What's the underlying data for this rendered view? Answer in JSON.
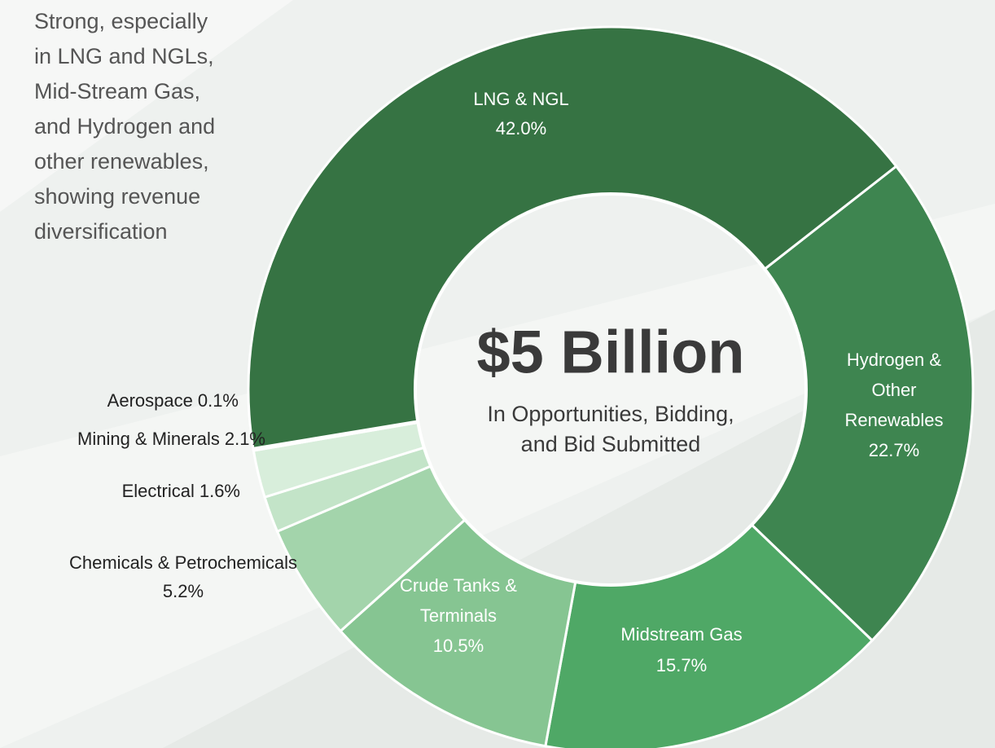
{
  "chart_data": {
    "type": "donut",
    "annotation": [
      "Strong, especially",
      "in LNG and NGLs,",
      "Mid-Stream Gas,",
      "and Hydrogen and",
      "other renewables,",
      "showing revenue",
      "diversification"
    ],
    "center_title": "$5 Billion",
    "center_subtitle": [
      "In Opportunities, Bidding,",
      "and Bid Submitted"
    ],
    "categories": [
      "Hydrogen & Other Renewables",
      "Midstream Gas",
      "Crude Tanks & Terminals",
      "Chemicals & Petrochemicals",
      "Electrical",
      "Mining & Minerals",
      "Aerospace",
      "LNG & NGL"
    ],
    "values": [
      22.7,
      15.7,
      10.5,
      5.2,
      1.6,
      2.1,
      0.1,
      42.0
    ],
    "value_labels": [
      "22.7%",
      "15.7%",
      "10.5%",
      "5.2%",
      "1.6%",
      "2.1%",
      "0.1%",
      "42.0%"
    ],
    "colors": [
      "#3e8550",
      "#4fa866",
      "#86c592",
      "#a3d4ab",
      "#c3e4c8",
      "#d8eedb",
      "#e8f4ea",
      "#367343"
    ]
  }
}
